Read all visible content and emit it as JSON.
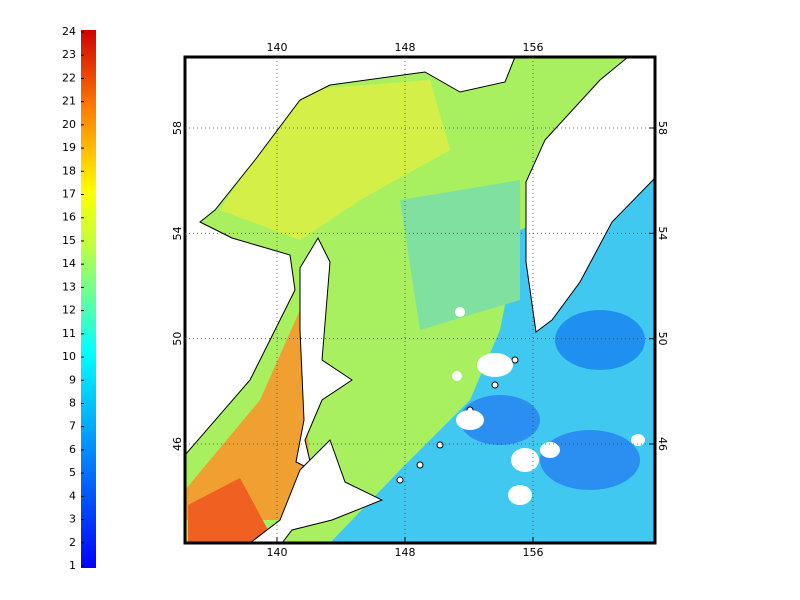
{
  "colorbar": {
    "ticks": [
      1,
      2,
      3,
      4,
      5,
      6,
      7,
      8,
      9,
      10,
      11,
      12,
      13,
      14,
      15,
      16,
      17,
      18,
      19,
      20,
      21,
      22,
      23,
      24
    ]
  },
  "map": {
    "lon_ticks_top": [
      140,
      148,
      156
    ],
    "lon_ticks_bottom": [
      140,
      148,
      156
    ],
    "lat_ticks_left": [
      46,
      50,
      54,
      58
    ],
    "lat_ticks_right": [
      46,
      50,
      54,
      58
    ],
    "grid": true
  }
}
